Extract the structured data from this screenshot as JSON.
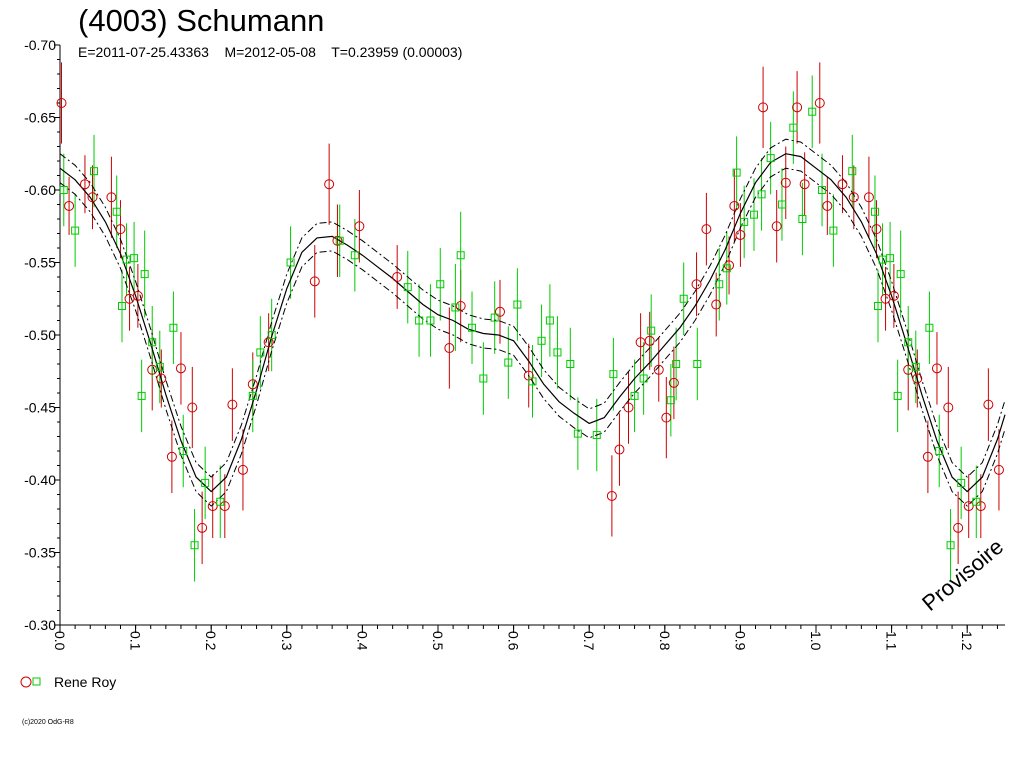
{
  "header": {
    "title": "(4003) Schumann",
    "elements": "E=2011-07-25.43363    M=2012-05-08    T=0.23959 (0.00003)"
  },
  "legend": {
    "observer": "Rene Roy"
  },
  "watermark": "Provisoire",
  "copyright": "(c)2020 OdG-R8",
  "colors": {
    "red_marker": "#cc0000",
    "green_marker": "#00cc00",
    "curve": "#000000"
  },
  "chart_data": {
    "type": "scatter",
    "xlabel": "",
    "ylabel": "",
    "xlim": [
      0.0,
      1.25
    ],
    "ylim": [
      -0.3,
      -0.7
    ],
    "y_inverted": true,
    "xticks": [
      "0.0",
      "0.1",
      "0.2",
      "0.3",
      "0.4",
      "0.5",
      "0.6",
      "0.7",
      "0.8",
      "0.9",
      "1.0",
      "1.1",
      "1.2"
    ],
    "yticks": [
      "-0.70",
      "-0.65",
      "-0.60",
      "-0.55",
      "-0.50",
      "-0.45",
      "-0.40",
      "-0.35",
      "-0.30"
    ],
    "series": [
      {
        "name": "Rene Roy",
        "marker": "circle",
        "color": "red",
        "points": [
          [
            0.002,
            -0.66,
            0.028
          ],
          [
            0.012,
            -0.589,
            0.02
          ],
          [
            0.033,
            -0.604,
            0.02
          ],
          [
            0.043,
            -0.595,
            0.022
          ],
          [
            0.068,
            -0.595,
            0.028
          ],
          [
            0.08,
            -0.573,
            0.02
          ],
          [
            0.092,
            -0.525,
            0.022
          ],
          [
            0.103,
            -0.527,
            0.022
          ],
          [
            0.122,
            -0.476,
            0.028
          ],
          [
            0.134,
            -0.47,
            0.02
          ],
          [
            0.148,
            -0.416,
            0.025
          ],
          [
            0.16,
            -0.477,
            0.025
          ],
          [
            0.175,
            -0.45,
            0.028
          ],
          [
            0.188,
            -0.367,
            0.025
          ],
          [
            0.202,
            -0.382,
            0.022
          ],
          [
            0.218,
            -0.382,
            0.022
          ],
          [
            0.228,
            -0.452,
            0.025
          ],
          [
            0.242,
            -0.407,
            0.028
          ],
          [
            0.255,
            -0.466,
            0.022
          ],
          [
            0.276,
            -0.495,
            0.02
          ],
          [
            0.337,
            -0.537,
            0.025
          ],
          [
            0.356,
            -0.604,
            0.028
          ],
          [
            0.367,
            -0.565,
            0.025
          ],
          [
            0.396,
            -0.575,
            0.025
          ],
          [
            0.446,
            -0.54,
            0.022
          ],
          [
            0.515,
            -0.491,
            0.028
          ],
          [
            0.53,
            -0.52,
            0.025
          ],
          [
            0.582,
            -0.516,
            0.022
          ],
          [
            0.62,
            -0.472,
            0.022
          ],
          [
            0.73,
            -0.389,
            0.028
          ],
          [
            0.74,
            -0.421,
            0.025
          ],
          [
            0.752,
            -0.45,
            0.025
          ],
          [
            0.768,
            -0.495,
            0.02
          ],
          [
            0.78,
            -0.496,
            0.02
          ],
          [
            0.792,
            -0.476,
            0.022
          ],
          [
            0.802,
            -0.443,
            0.028
          ],
          [
            0.812,
            -0.467,
            0.025
          ],
          [
            0.842,
            -0.535,
            0.022
          ],
          [
            0.855,
            -0.573,
            0.025
          ],
          [
            0.868,
            -0.521,
            0.022
          ],
          [
            0.885,
            -0.548,
            0.02
          ],
          [
            0.892,
            -0.589,
            0.025
          ],
          [
            0.9,
            -0.569,
            0.022
          ],
          [
            0.93,
            -0.657,
            0.028
          ],
          [
            0.948,
            -0.575,
            0.025
          ],
          [
            0.96,
            -0.605,
            0.025
          ],
          [
            0.975,
            -0.657,
            0.025
          ],
          [
            0.985,
            -0.604,
            0.022
          ],
          [
            1.005,
            -0.66,
            0.028
          ],
          [
            1.015,
            -0.589,
            0.02
          ],
          [
            1.035,
            -0.604,
            0.02
          ],
          [
            1.05,
            -0.595,
            0.022
          ],
          [
            1.07,
            -0.595,
            0.028
          ],
          [
            1.08,
            -0.573,
            0.02
          ],
          [
            1.092,
            -0.525,
            0.022
          ],
          [
            1.103,
            -0.527,
            0.022
          ],
          [
            1.122,
            -0.476,
            0.028
          ],
          [
            1.134,
            -0.47,
            0.02
          ],
          [
            1.148,
            -0.416,
            0.025
          ],
          [
            1.16,
            -0.477,
            0.025
          ],
          [
            1.175,
            -0.45,
            0.028
          ],
          [
            1.188,
            -0.367,
            0.025
          ],
          [
            1.202,
            -0.382,
            0.022
          ],
          [
            1.218,
            -0.382,
            0.022
          ],
          [
            1.228,
            -0.452,
            0.025
          ],
          [
            1.242,
            -0.407,
            0.028
          ]
        ]
      },
      {
        "name": "Rene Roy",
        "marker": "square",
        "color": "green",
        "points": [
          [
            0.005,
            -0.6,
            0.025
          ],
          [
            0.02,
            -0.572,
            0.025
          ],
          [
            0.045,
            -0.613,
            0.025
          ],
          [
            0.075,
            -0.585,
            0.025
          ],
          [
            0.082,
            -0.52,
            0.025
          ],
          [
            0.088,
            -0.552,
            0.025
          ],
          [
            0.098,
            -0.553,
            0.025
          ],
          [
            0.108,
            -0.458,
            0.025
          ],
          [
            0.112,
            -0.542,
            0.03
          ],
          [
            0.122,
            -0.495,
            0.025
          ],
          [
            0.132,
            -0.478,
            0.025
          ],
          [
            0.15,
            -0.505,
            0.025
          ],
          [
            0.163,
            -0.42,
            0.025
          ],
          [
            0.178,
            -0.355,
            0.025
          ],
          [
            0.192,
            -0.398,
            0.025
          ],
          [
            0.212,
            -0.385,
            0.025
          ],
          [
            0.255,
            -0.458,
            0.025
          ],
          [
            0.265,
            -0.488,
            0.025
          ],
          [
            0.28,
            -0.5,
            0.025
          ],
          [
            0.305,
            -0.55,
            0.025
          ],
          [
            0.37,
            -0.565,
            0.025
          ],
          [
            0.39,
            -0.555,
            0.025
          ],
          [
            0.46,
            -0.533,
            0.025
          ],
          [
            0.475,
            -0.51,
            0.025
          ],
          [
            0.49,
            -0.51,
            0.025
          ],
          [
            0.503,
            -0.535,
            0.025
          ],
          [
            0.523,
            -0.519,
            0.03
          ],
          [
            0.53,
            -0.555,
            0.03
          ],
          [
            0.545,
            -0.505,
            0.025
          ],
          [
            0.56,
            -0.47,
            0.025
          ],
          [
            0.575,
            -0.512,
            0.025
          ],
          [
            0.593,
            -0.481,
            0.025
          ],
          [
            0.605,
            -0.521,
            0.025
          ],
          [
            0.625,
            -0.468,
            0.025
          ],
          [
            0.637,
            -0.496,
            0.025
          ],
          [
            0.648,
            -0.51,
            0.025
          ],
          [
            0.658,
            -0.488,
            0.025
          ],
          [
            0.675,
            -0.48,
            0.025
          ],
          [
            0.685,
            -0.432,
            0.025
          ],
          [
            0.71,
            -0.431,
            0.025
          ],
          [
            0.732,
            -0.473,
            0.025
          ],
          [
            0.76,
            -0.458,
            0.025
          ],
          [
            0.772,
            -0.47,
            0.025
          ],
          [
            0.782,
            -0.503,
            0.025
          ],
          [
            0.808,
            -0.455,
            0.025
          ],
          [
            0.815,
            -0.48,
            0.025
          ],
          [
            0.825,
            -0.525,
            0.025
          ],
          [
            0.843,
            -0.48,
            0.025
          ],
          [
            0.872,
            -0.535,
            0.025
          ],
          [
            0.882,
            -0.546,
            0.025
          ],
          [
            0.895,
            -0.612,
            0.025
          ],
          [
            0.905,
            -0.578,
            0.025
          ],
          [
            0.918,
            -0.583,
            0.025
          ],
          [
            0.928,
            -0.597,
            0.025
          ],
          [
            0.94,
            -0.622,
            0.025
          ],
          [
            0.955,
            -0.59,
            0.025
          ],
          [
            0.97,
            -0.643,
            0.025
          ],
          [
            0.982,
            -0.58,
            0.025
          ],
          [
            0.995,
            -0.654,
            0.025
          ],
          [
            1.008,
            -0.6,
            0.025
          ],
          [
            1.023,
            -0.572,
            0.025
          ],
          [
            1.048,
            -0.613,
            0.025
          ],
          [
            1.078,
            -0.585,
            0.025
          ],
          [
            1.082,
            -0.52,
            0.025
          ],
          [
            1.088,
            -0.552,
            0.025
          ],
          [
            1.098,
            -0.553,
            0.025
          ],
          [
            1.108,
            -0.458,
            0.025
          ],
          [
            1.112,
            -0.542,
            0.03
          ],
          [
            1.122,
            -0.495,
            0.025
          ],
          [
            1.132,
            -0.478,
            0.025
          ],
          [
            1.15,
            -0.505,
            0.025
          ],
          [
            1.163,
            -0.42,
            0.025
          ],
          [
            1.178,
            -0.355,
            0.025
          ],
          [
            1.192,
            -0.398,
            0.025
          ],
          [
            1.212,
            -0.385,
            0.025
          ]
        ]
      }
    ],
    "fit_curve": {
      "x": [
        0.0,
        0.02,
        0.04,
        0.06,
        0.08,
        0.1,
        0.12,
        0.14,
        0.16,
        0.18,
        0.2,
        0.22,
        0.24,
        0.26,
        0.28,
        0.3,
        0.32,
        0.34,
        0.36,
        0.38,
        0.4,
        0.42,
        0.44,
        0.46,
        0.48,
        0.5,
        0.52,
        0.54,
        0.56,
        0.58,
        0.6,
        0.62,
        0.64,
        0.66,
        0.68,
        0.7,
        0.72,
        0.74,
        0.76,
        0.78,
        0.8,
        0.82,
        0.84,
        0.86,
        0.88,
        0.9,
        0.92,
        0.94,
        0.96,
        0.98,
        1.0,
        1.02,
        1.04,
        1.06,
        1.08,
        1.1,
        1.12,
        1.14,
        1.16,
        1.18,
        1.2,
        1.22,
        1.24,
        1.25
      ],
      "y": [
        -0.615,
        -0.607,
        -0.595,
        -0.578,
        -0.556,
        -0.527,
        -0.494,
        -0.459,
        -0.427,
        -0.402,
        -0.392,
        -0.402,
        -0.428,
        -0.462,
        -0.499,
        -0.532,
        -0.557,
        -0.567,
        -0.568,
        -0.562,
        -0.555,
        -0.547,
        -0.539,
        -0.53,
        -0.521,
        -0.514,
        -0.51,
        -0.504,
        -0.501,
        -0.5,
        -0.496,
        -0.482,
        -0.466,
        -0.454,
        -0.446,
        -0.439,
        -0.443,
        -0.457,
        -0.47,
        -0.481,
        -0.493,
        -0.505,
        -0.52,
        -0.538,
        -0.559,
        -0.584,
        -0.605,
        -0.619,
        -0.625,
        -0.623,
        -0.615,
        -0.607,
        -0.595,
        -0.578,
        -0.556,
        -0.527,
        -0.494,
        -0.459,
        -0.427,
        -0.402,
        -0.392,
        -0.402,
        -0.428,
        -0.445
      ],
      "band": 0.01
    }
  }
}
